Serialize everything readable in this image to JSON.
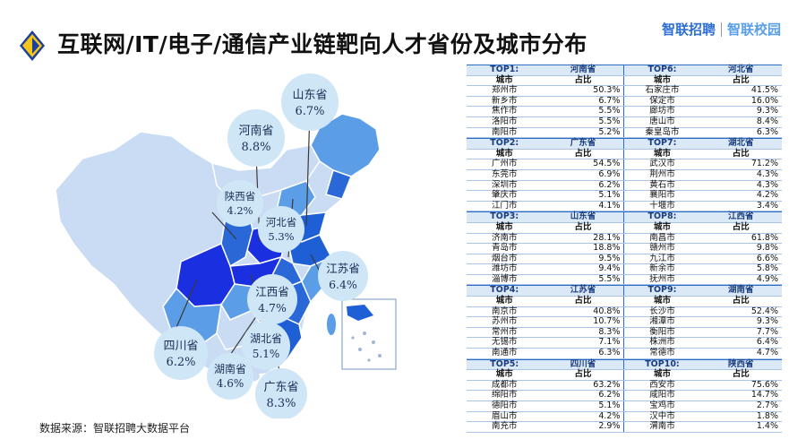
{
  "header": {
    "title": "互联网/IT/电子/通信产业链靶向人才省份及城市分布",
    "logo_primary": "智联招聘",
    "logo_secondary": "智联校园"
  },
  "source_note": "数据来源：智联招聘大数据平台",
  "colors": {
    "accent_yellow": "#f5c518",
    "accent_blue": "#1d3f9e",
    "map_light": "#c9dcf3",
    "map_mid": "#5b9de6",
    "map_dark": "#1f5fd6",
    "map_deep": "#1a2fe0",
    "bubble": "#cfe6f7"
  },
  "chart_data": {
    "type": "table",
    "title": "互联网/IT/电子/通信产业链靶向人才省份及城市分布",
    "map_labels": [
      {
        "province": "山东省",
        "value": "6.7%"
      },
      {
        "province": "河南省",
        "value": "8.8%"
      },
      {
        "province": "陕西省",
        "value": "4.2%"
      },
      {
        "province": "河北省",
        "value": "5.3%"
      },
      {
        "province": "江苏省",
        "value": "6.4%"
      },
      {
        "province": "江西省",
        "value": "4.7%"
      },
      {
        "province": "湖北省",
        "value": "5.1%"
      },
      {
        "province": "四川省",
        "value": "6.2%"
      },
      {
        "province": "湖南省",
        "value": "4.6%"
      },
      {
        "province": "广东省",
        "value": "8.3%"
      }
    ],
    "col_headers": [
      "城市",
      "占比"
    ],
    "rows": [
      {
        "left": {
          "rank": "TOP1:",
          "province": "河南省",
          "cities": [
            [
              "郑州市",
              "50.3%"
            ],
            [
              "新乡市",
              "6.7%"
            ],
            [
              "焦作市",
              "5.5%"
            ],
            [
              "洛阳市",
              "5.5%"
            ],
            [
              "南阳市",
              "5.2%"
            ]
          ]
        },
        "right": {
          "rank": "TOP6:",
          "province": "河北省",
          "cities": [
            [
              "石家庄市",
              "41.5%"
            ],
            [
              "保定市",
              "16.0%"
            ],
            [
              "廊坊市",
              "9.3%"
            ],
            [
              "唐山市",
              "8.4%"
            ],
            [
              "秦皇岛市",
              "6.3%"
            ]
          ]
        }
      },
      {
        "left": {
          "rank": "TOP2:",
          "province": "广东省",
          "cities": [
            [
              "广州市",
              "54.5%"
            ],
            [
              "东莞市",
              "6.9%"
            ],
            [
              "深圳市",
              "6.2%"
            ],
            [
              "肇庆市",
              "5.1%"
            ],
            [
              "江门市",
              "4.1%"
            ]
          ]
        },
        "right": {
          "rank": "TOP7:",
          "province": "湖北省",
          "cities": [
            [
              "武汉市",
              "71.2%"
            ],
            [
              "荆州市",
              "4.3%"
            ],
            [
              "黄石市",
              "4.3%"
            ],
            [
              "襄阳市",
              "4.2%"
            ],
            [
              "十堰市",
              "3.4%"
            ]
          ]
        }
      },
      {
        "left": {
          "rank": "TOP3:",
          "province": "山东省",
          "cities": [
            [
              "济南市",
              "28.1%"
            ],
            [
              "青岛市",
              "18.8%"
            ],
            [
              "烟台市",
              "9.5%"
            ],
            [
              "潍坊市",
              "9.4%"
            ],
            [
              "淄博市",
              "5.5%"
            ]
          ]
        },
        "right": {
          "rank": "TOP8:",
          "province": "江西省",
          "cities": [
            [
              "南昌市",
              "61.8%"
            ],
            [
              "赣州市",
              "9.8%"
            ],
            [
              "九江市",
              "6.6%"
            ],
            [
              "新余市",
              "5.8%"
            ],
            [
              "抚州市",
              "4.9%"
            ]
          ]
        }
      },
      {
        "left": {
          "rank": "TOP4:",
          "province": "江苏省",
          "cities": [
            [
              "南京市",
              "40.8%"
            ],
            [
              "苏州市",
              "10.7%"
            ],
            [
              "常州市",
              "8.3%"
            ],
            [
              "无锡市",
              "7.1%"
            ],
            [
              "南通市",
              "6.3%"
            ]
          ]
        },
        "right": {
          "rank": "TOP9:",
          "province": "湖南省",
          "cities": [
            [
              "长沙市",
              "52.4%"
            ],
            [
              "湘潭市",
              "9.3%"
            ],
            [
              "衡阳市",
              "7.7%"
            ],
            [
              "株洲市",
              "6.4%"
            ],
            [
              "常德市",
              "4.7%"
            ]
          ]
        }
      },
      {
        "left": {
          "rank": "TOP5:",
          "province": "四川省",
          "cities": [
            [
              "成都市",
              "63.2%"
            ],
            [
              "绵阳市",
              "6.2%"
            ],
            [
              "德阳市",
              "5.1%"
            ],
            [
              "眉山市",
              "4.2%"
            ],
            [
              "南充市",
              "2.9%"
            ]
          ]
        },
        "right": {
          "rank": "TOP10:",
          "province": "陕西省",
          "cities": [
            [
              "西安市",
              "75.6%"
            ],
            [
              "咸阳市",
              "14.7%"
            ],
            [
              "宝鸡市",
              "2.7%"
            ],
            [
              "汉中市",
              "1.8%"
            ],
            [
              "渭南市",
              "1.4%"
            ]
          ]
        }
      }
    ]
  }
}
